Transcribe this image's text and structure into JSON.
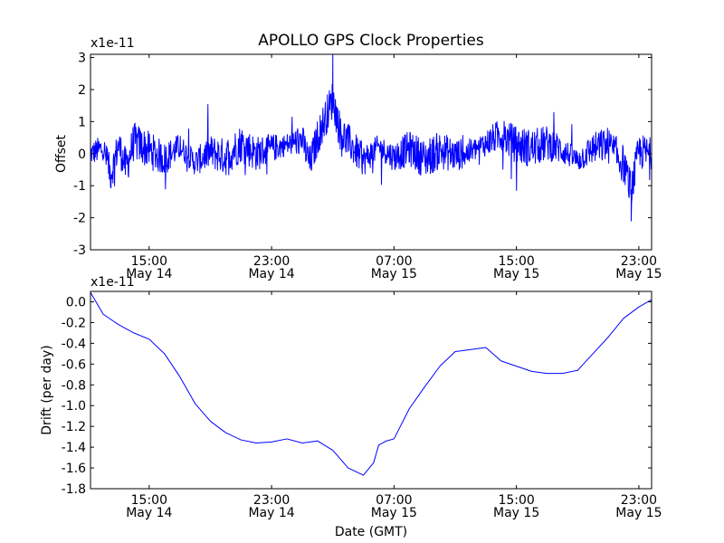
{
  "title": "APOLLO GPS Clock Properties",
  "colors": {
    "background": "#ffffff",
    "axes": "#000000",
    "line": "#0000ff"
  },
  "chart_data": [
    {
      "type": "line",
      "title": "APOLLO GPS Clock Properties",
      "ylabel": "Offset",
      "y_multiplier": "x1e-11",
      "ylim": [
        -3,
        3.1
      ],
      "y_ticks": [
        -3,
        -2,
        -1,
        0,
        1,
        2,
        3
      ],
      "y_tick_labels": [
        "-3",
        "-2",
        "-1",
        "0",
        "1",
        "2",
        "3"
      ],
      "xlim": [
        "2008-05-14T11:10",
        "2008-05-15T23:50"
      ],
      "x_ticks": [
        "2008-05-14T15:00",
        "2008-05-14T23:00",
        "2008-05-15T07:00",
        "2008-05-15T15:00",
        "2008-05-15T23:00"
      ],
      "x_tick_labels": [
        {
          "time": "15:00",
          "date": "May 14"
        },
        {
          "time": "23:00",
          "date": "May 14"
        },
        {
          "time": "07:00",
          "date": "May 15"
        },
        {
          "time": "15:00",
          "date": "May 15"
        },
        {
          "time": "23:00",
          "date": "May 15"
        }
      ],
      "grid": false,
      "series": [
        {
          "color": "#0000ff",
          "note": "noisy offset trace; anchor points (time, offset) digitized from figure",
          "x": [
            "2008-05-14T11:10",
            "2008-05-14T12:00",
            "2008-05-14T12:30",
            "2008-05-14T13:00",
            "2008-05-14T13:30",
            "2008-05-14T14:00",
            "2008-05-14T15:00",
            "2008-05-14T16:00",
            "2008-05-14T17:00",
            "2008-05-14T18:00",
            "2008-05-14T19:00",
            "2008-05-14T20:00",
            "2008-05-14T21:00",
            "2008-05-14T22:00",
            "2008-05-14T23:00",
            "2008-05-15T00:00",
            "2008-05-15T01:00",
            "2008-05-15T01:30",
            "2008-05-15T02:00",
            "2008-05-15T03:00",
            "2008-05-15T03:30",
            "2008-05-15T04:00",
            "2008-05-15T05:00",
            "2008-05-15T06:00",
            "2008-05-15T07:00",
            "2008-05-15T08:00",
            "2008-05-15T09:00",
            "2008-05-15T10:00",
            "2008-05-15T11:00",
            "2008-05-15T12:00",
            "2008-05-15T13:00",
            "2008-05-15T14:00",
            "2008-05-15T15:00",
            "2008-05-15T16:00",
            "2008-05-15T17:00",
            "2008-05-15T18:00",
            "2008-05-15T19:00",
            "2008-05-15T20:00",
            "2008-05-15T21:00",
            "2008-05-15T22:00",
            "2008-05-15T22:30",
            "2008-05-15T23:00",
            "2008-05-15T23:50"
          ],
          "values": [
            0.0,
            0.3,
            -1.2,
            0.5,
            -0.8,
            0.7,
            0.2,
            -0.3,
            0.4,
            -0.5,
            0.1,
            -0.2,
            0.6,
            0.0,
            0.3,
            0.5,
            0.8,
            -0.6,
            0.9,
            3.1,
            1.2,
            0.7,
            -0.4,
            0.4,
            -0.2,
            0.3,
            -0.3,
            0.2,
            -0.1,
            0.1,
            0.6,
            1.1,
            0.5,
            0.3,
            0.6,
            0.2,
            -0.4,
            0.3,
            0.5,
            -0.6,
            -2.1,
            0.1,
            0.0
          ]
        }
      ]
    },
    {
      "type": "line",
      "xlabel": "Date (GMT)",
      "ylabel": "Drift (per day)",
      "y_multiplier": "x1e-11",
      "ylim": [
        -1.8,
        0.1
      ],
      "y_ticks": [
        0.0,
        -0.2,
        -0.4,
        -0.6,
        -0.8,
        -1.0,
        -1.2,
        -1.4,
        -1.6,
        -1.8
      ],
      "y_tick_labels": [
        "0.0",
        "-0.2",
        "-0.4",
        "-0.6",
        "-0.8",
        "-1.0",
        "-1.2",
        "-1.4",
        "-1.6",
        "-1.8"
      ],
      "xlim": [
        "2008-05-14T11:10",
        "2008-05-15T23:50"
      ],
      "x_ticks": [
        "2008-05-14T15:00",
        "2008-05-14T23:00",
        "2008-05-15T07:00",
        "2008-05-15T15:00",
        "2008-05-15T23:00"
      ],
      "x_tick_labels": [
        {
          "time": "15:00",
          "date": "May 14"
        },
        {
          "time": "23:00",
          "date": "May 14"
        },
        {
          "time": "07:00",
          "date": "May 15"
        },
        {
          "time": "15:00",
          "date": "May 15"
        },
        {
          "time": "23:00",
          "date": "May 15"
        }
      ],
      "grid": false,
      "series": [
        {
          "color": "#0000ff",
          "x": [
            "2008-05-14T11:10",
            "2008-05-14T12:00",
            "2008-05-14T13:00",
            "2008-05-14T14:00",
            "2008-05-14T15:00",
            "2008-05-14T16:00",
            "2008-05-14T17:00",
            "2008-05-14T18:00",
            "2008-05-14T19:00",
            "2008-05-14T20:00",
            "2008-05-14T21:00",
            "2008-05-14T22:00",
            "2008-05-14T23:00",
            "2008-05-15T00:00",
            "2008-05-15T01:00",
            "2008-05-15T02:00",
            "2008-05-15T03:00",
            "2008-05-15T04:00",
            "2008-05-15T05:00",
            "2008-05-15T05:40",
            "2008-05-15T06:00",
            "2008-05-15T06:30",
            "2008-05-15T07:00",
            "2008-05-15T08:00",
            "2008-05-15T09:00",
            "2008-05-15T10:00",
            "2008-05-15T11:00",
            "2008-05-15T12:00",
            "2008-05-15T13:00",
            "2008-05-15T14:00",
            "2008-05-15T15:00",
            "2008-05-15T16:00",
            "2008-05-15T17:00",
            "2008-05-15T18:00",
            "2008-05-15T19:00",
            "2008-05-15T20:00",
            "2008-05-15T21:00",
            "2008-05-15T22:00",
            "2008-05-15T23:00",
            "2008-05-15T23:50"
          ],
          "values": [
            0.09,
            -0.12,
            -0.22,
            -0.3,
            -0.36,
            -0.5,
            -0.72,
            -0.98,
            -1.15,
            -1.26,
            -1.33,
            -1.36,
            -1.35,
            -1.32,
            -1.36,
            -1.34,
            -1.43,
            -1.6,
            -1.67,
            -1.55,
            -1.38,
            -1.34,
            -1.32,
            -1.03,
            -0.82,
            -0.62,
            -0.48,
            -0.46,
            -0.44,
            -0.57,
            -0.62,
            -0.67,
            -0.69,
            -0.69,
            -0.66,
            -0.5,
            -0.34,
            -0.16,
            -0.05,
            0.02
          ]
        }
      ]
    }
  ]
}
